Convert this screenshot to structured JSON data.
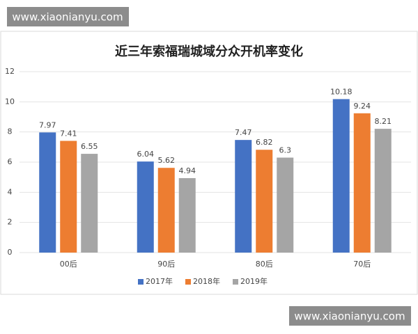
{
  "chart_data": {
    "type": "bar",
    "title": "近三年索福瑞城域分众开机率变化",
    "categories": [
      "00后",
      "90后",
      "80后",
      "70后"
    ],
    "series": [
      {
        "name": "2017年",
        "color": "#4472c4",
        "values": [
          7.97,
          6.04,
          7.47,
          10.18
        ]
      },
      {
        "name": "2018年",
        "color": "#ed7d31",
        "values": [
          7.41,
          5.62,
          6.82,
          9.24
        ]
      },
      {
        "name": "2019年",
        "color": "#a5a5a5",
        "values": [
          6.55,
          4.94,
          6.3,
          8.21
        ]
      }
    ],
    "ylim": [
      0,
      12
    ],
    "yticks": [
      0,
      2,
      4,
      6,
      8,
      10,
      12
    ],
    "grid": true,
    "legend": "bottom"
  },
  "watermarks": [
    "www.xiaonianyu.com",
    "www.xiaonianyu.com"
  ]
}
